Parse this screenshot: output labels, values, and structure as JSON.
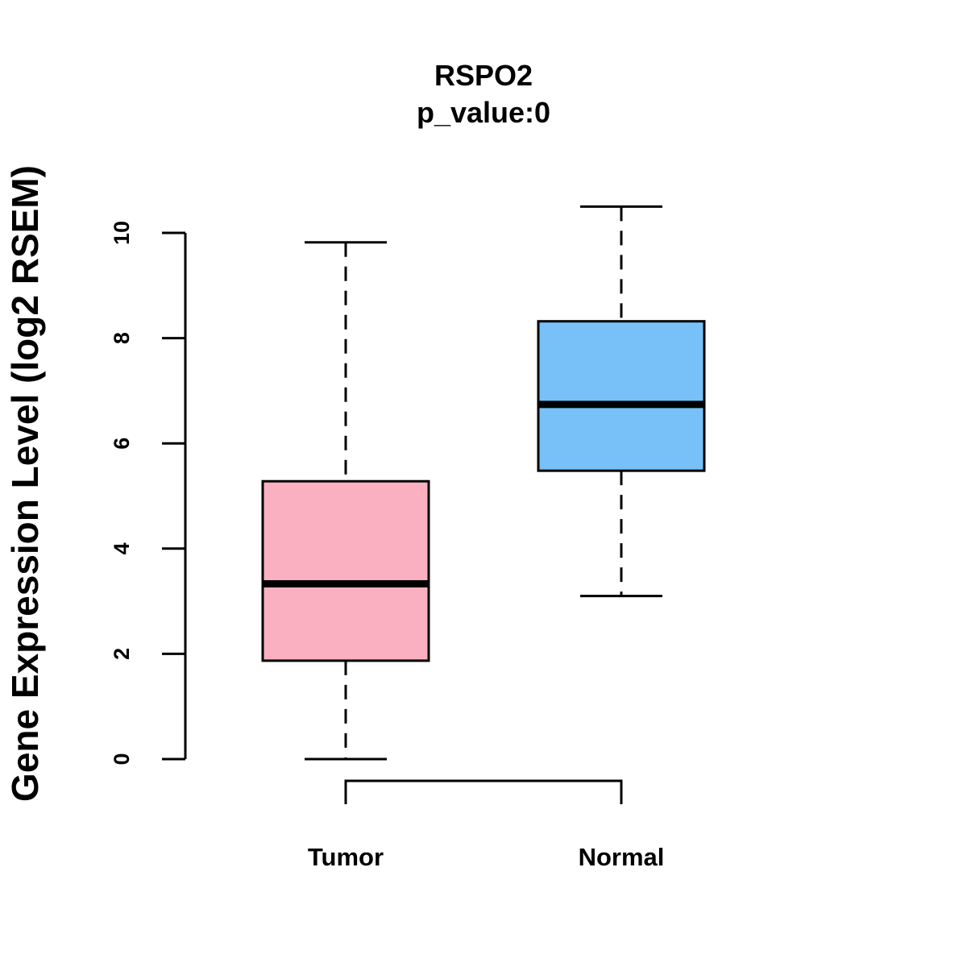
{
  "chart_data": {
    "type": "boxplot",
    "title": "RSPO2",
    "subtitle": "p_value:0",
    "ylabel": "Gene Expression Level (log2 RSEM)",
    "xlabel": "",
    "ylim": [
      0,
      10
    ],
    "yticks": [
      "0",
      "2",
      "4",
      "6",
      "8",
      "10"
    ],
    "categories": [
      "Tumor",
      "Normal"
    ],
    "series": [
      {
        "name": "Tumor",
        "min": 0.0,
        "q1": 1.87,
        "median": 3.33,
        "q3": 5.28,
        "max": 9.82,
        "color": "#FBB0C2"
      },
      {
        "name": "Normal",
        "min": 3.1,
        "q1": 5.48,
        "median": 6.74,
        "q3": 8.32,
        "max": 10.5,
        "color": "#78C1F8"
      }
    ],
    "bracket": {
      "from": "Tumor",
      "to": "Normal"
    }
  }
}
